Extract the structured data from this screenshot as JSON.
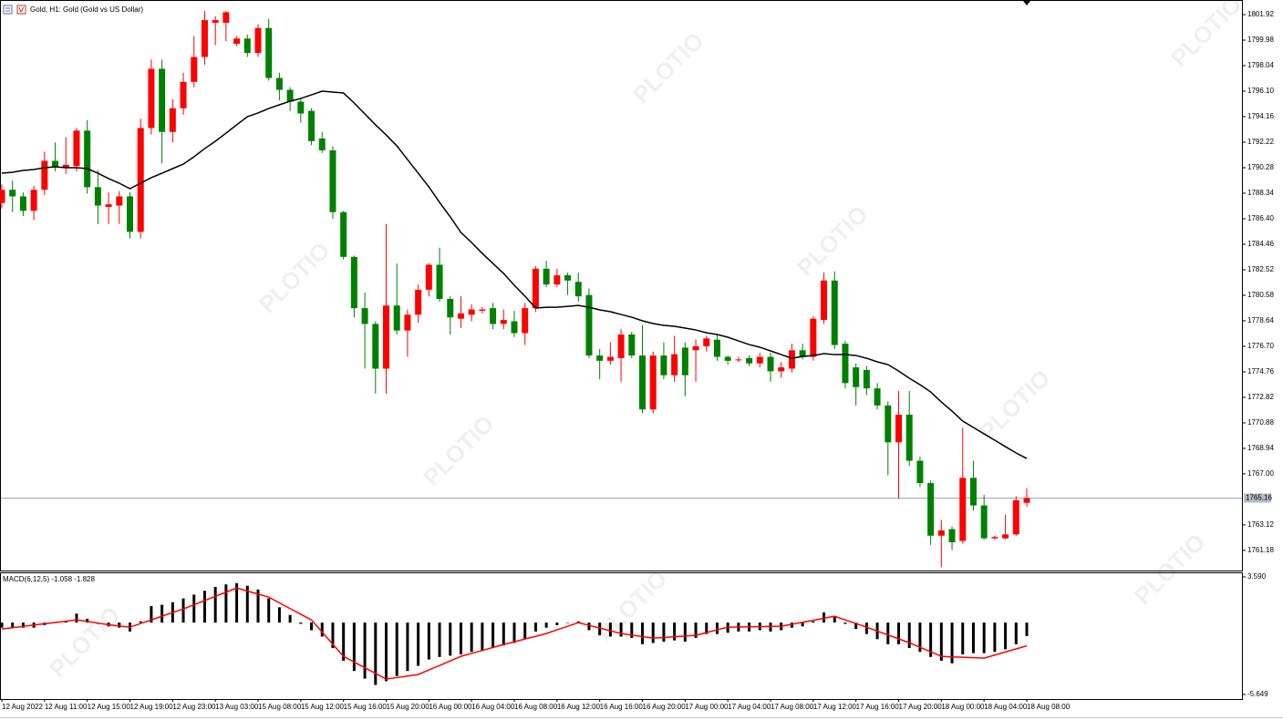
{
  "chart_data": [
    {
      "type": "candlestick",
      "title": "Gold, H1:  Gold (Gold vs US Dollar)",
      "watermark": "PLOTIO",
      "up_color": "#ff0000",
      "down_color": "#008000",
      "categories": [
        "12 Aug 2022",
        null,
        null,
        null,
        "12 Aug 11:00",
        null,
        null,
        null,
        "12 Aug 15:00",
        null,
        null,
        null,
        "12 Aug 19:00",
        null,
        null,
        null,
        "12 Aug 23:00",
        null,
        null,
        null,
        "13 Aug 03:00",
        null,
        null,
        null,
        "15 Aug 08:00",
        null,
        null,
        null,
        "15 Aug 12:00",
        null,
        null,
        null,
        "15 Aug 16:00",
        null,
        null,
        null,
        "15 Aug 20:00",
        null,
        null,
        null,
        "16 Aug 00:00",
        null,
        null,
        null,
        "16 Aug 04:00",
        null,
        null,
        null,
        "16 Aug 08:00",
        null,
        null,
        null,
        "16 Aug 12:00",
        null,
        null,
        null,
        "16 Aug 16:00",
        null,
        null,
        null,
        "16 Aug 20:00",
        null,
        null,
        null,
        "17 Aug 00:00",
        null,
        null,
        null,
        "17 Aug 04:00",
        null,
        null,
        null,
        "17 Aug 08:00",
        null,
        null,
        null,
        "17 Aug 12:00",
        null,
        null,
        null,
        "17 Aug 16:00",
        null,
        null,
        null,
        "17 Aug 20:00",
        null,
        null,
        null,
        "18 Aug 00:00",
        null,
        null,
        null,
        "18 Aug 04:00",
        null,
        null,
        null,
        "18 Aug 08:00"
      ],
      "open": [
        1787.6,
        1788.6,
        1788.1,
        1787.0,
        1788.6,
        1790.8,
        1790.3,
        1790.4,
        1793.1,
        1788.8,
        1787.3,
        1787.4,
        1788.1,
        1785.4,
        1793.3,
        1797.8,
        1793.0,
        1794.8,
        1796.8,
        1798.7,
        1801.3,
        1801.3,
        1799.7,
        1800.1,
        1799.0,
        1800.9,
        1797.1,
        1796.2,
        1795.3,
        1794.6,
        1792.5,
        1791.6,
        1786.9,
        1783.5,
        1779.6,
        1778.4,
        1775.0,
        1779.8,
        1777.9,
        1779.1,
        1781.0,
        1782.9,
        1780.3,
        1778.8,
        1779.1,
        1779.4,
        1779.6,
        1778.4,
        1778.6,
        1777.7,
        1779.6,
        1782.6,
        1781.4,
        1782.1,
        1781.6,
        1780.6,
        1776.0,
        1775.6,
        1775.8,
        1777.6,
        1776.0,
        1771.9,
        1776.0,
        1774.5,
        1776.6,
        1776.4,
        1776.7,
        1777.2,
        1775.9,
        1775.7,
        1775.8,
        1775.4,
        1775.9,
        1774.8,
        1775.0,
        1776.4,
        1775.9,
        1778.7,
        1781.7,
        1776.9,
        1775.1,
        1774.9,
        1773.5,
        1772.2,
        1769.4,
        1771.5,
        1768.0,
        1766.3,
        1762.3,
        1762.8,
        1761.9,
        1766.7,
        1764.6,
        1762.1,
        1762.1,
        1762.4,
        1764.8
      ],
      "high": [
        1789.0,
        1789.3,
        1788.4,
        1788.9,
        1791.5,
        1792.2,
        1792.6,
        1793.3,
        1793.9,
        1790.1,
        1788.4,
        1788.5,
        1788.4,
        1794.0,
        1798.5,
        1798.5,
        1795.5,
        1797.5,
        1800.3,
        1802.2,
        1801.8,
        1802.2,
        1800.3,
        1800.4,
        1801.2,
        1801.6,
        1797.5,
        1796.4,
        1795.6,
        1794.8,
        1793.0,
        1791.9,
        1787.0,
        1783.6,
        1780.8,
        1778.6,
        1786.0,
        1783.0,
        1779.5,
        1781.4,
        1783.0,
        1784.2,
        1780.5,
        1780.5,
        1779.9,
        1779.7,
        1780.0,
        1779.5,
        1779.4,
        1780.0,
        1782.8,
        1783.2,
        1782.6,
        1782.3,
        1782.3,
        1781.1,
        1776.5,
        1777.0,
        1778.0,
        1777.8,
        1778.3,
        1776.3,
        1777.0,
        1777.5,
        1777.0,
        1777.2,
        1777.5,
        1777.6,
        1776.0,
        1775.9,
        1776.0,
        1776.2,
        1776.2,
        1775.5,
        1776.9,
        1776.9,
        1779.0,
        1782.3,
        1782.4,
        1777.1,
        1775.4,
        1775.2,
        1773.9,
        1772.5,
        1773.3,
        1773.3,
        1768.3,
        1766.5,
        1763.5,
        1763.0,
        1770.5,
        1768.0,
        1765.4,
        1762.3,
        1763.9,
        1765.3,
        1765.9
      ],
      "low": [
        1787.2,
        1786.9,
        1786.6,
        1786.3,
        1788.2,
        1790.0,
        1789.8,
        1790.0,
        1788.3,
        1786.0,
        1786.0,
        1786.0,
        1784.9,
        1784.9,
        1792.8,
        1790.6,
        1792.2,
        1794.3,
        1796.4,
        1798.1,
        1799.6,
        1799.9,
        1799.5,
        1798.7,
        1798.7,
        1796.9,
        1795.4,
        1794.6,
        1793.7,
        1792.0,
        1791.4,
        1786.4,
        1783.3,
        1778.9,
        1775.0,
        1773.1,
        1773.1,
        1777.6,
        1775.9,
        1778.5,
        1780.5,
        1780.1,
        1777.6,
        1778.1,
        1778.6,
        1779.2,
        1778.0,
        1778.0,
        1777.4,
        1776.8,
        1779.3,
        1781.2,
        1781.2,
        1780.6,
        1780.1,
        1775.8,
        1774.2,
        1775.3,
        1774.0,
        1775.8,
        1771.6,
        1771.6,
        1774.2,
        1774.0,
        1772.9,
        1774.0,
        1776.3,
        1775.6,
        1775.3,
        1775.5,
        1775.2,
        1775.1,
        1774.0,
        1774.3,
        1774.7,
        1775.7,
        1775.6,
        1778.4,
        1776.5,
        1773.5,
        1772.2,
        1773.0,
        1771.9,
        1766.9,
        1765.1,
        1767.6,
        1766.0,
        1761.6,
        1759.9,
        1761.2,
        1761.7,
        1764.2,
        1762.0,
        1762.0,
        1762.0,
        1762.3,
        1764.5
      ],
      "close": [
        1788.6,
        1788.1,
        1787.0,
        1788.6,
        1790.8,
        1790.3,
        1790.5,
        1793.1,
        1788.8,
        1787.4,
        1787.5,
        1788.1,
        1785.4,
        1793.3,
        1797.8,
        1793.0,
        1794.8,
        1796.8,
        1798.7,
        1801.5,
        1801.5,
        1802.1,
        1800.1,
        1799.0,
        1800.9,
        1797.1,
        1796.2,
        1795.3,
        1794.4,
        1792.3,
        1791.6,
        1786.9,
        1783.5,
        1779.6,
        1778.4,
        1775.0,
        1779.8,
        1777.9,
        1779.1,
        1781.0,
        1782.9,
        1780.3,
        1778.9,
        1779.2,
        1779.5,
        1779.5,
        1778.4,
        1778.7,
        1777.7,
        1779.6,
        1782.6,
        1781.4,
        1782.1,
        1781.7,
        1780.5,
        1776.0,
        1775.6,
        1775.9,
        1777.6,
        1776.0,
        1771.9,
        1776.0,
        1774.5,
        1776.1,
        1774.5,
        1776.7,
        1777.3,
        1775.9,
        1775.6,
        1775.7,
        1775.4,
        1775.9,
        1774.8,
        1775.1,
        1776.4,
        1775.9,
        1778.8,
        1781.7,
        1776.8,
        1773.9,
        1773.6,
        1773.5,
        1772.2,
        1769.4,
        1771.5,
        1768.0,
        1766.3,
        1762.3,
        1762.7,
        1761.8,
        1766.7,
        1764.6,
        1762.1,
        1762.2,
        1762.4,
        1765.0,
        1765.16
      ],
      "series": [
        {
          "color": "#000000",
          "values": [
            1789.86,
            1789.93,
            1790.07,
            1790.14,
            1790.28,
            1790.35,
            1790.28,
            1790.28,
            1790.21,
            1789.86,
            1789.45,
            1789.1,
            1788.68,
            1789.1,
            1789.52,
            1789.86,
            1790.21,
            1790.55,
            1791.11,
            1791.73,
            1792.29,
            1792.91,
            1793.54,
            1794.16,
            1794.44,
            1794.78,
            1795.06,
            1795.34,
            1795.54,
            1795.82,
            1796.1,
            1796.03,
            1795.96,
            1795.2,
            1794.37,
            1793.54,
            1792.77,
            1791.94,
            1790.9,
            1789.86,
            1788.82,
            1787.64,
            1786.54,
            1785.36,
            1784.59,
            1783.76,
            1783.0,
            1782.24,
            1781.34,
            1780.51,
            1779.61,
            1779.67,
            1779.67,
            1779.74,
            1779.81,
            1779.67,
            1779.47,
            1779.33,
            1779.12,
            1778.91,
            1778.64,
            1778.43,
            1778.29,
            1778.22,
            1778.08,
            1777.94,
            1777.73,
            1777.6,
            1777.39,
            1777.11,
            1776.83,
            1776.63,
            1776.35,
            1776.07,
            1775.79,
            1775.93,
            1776.0,
            1776.14,
            1776.07,
            1776.07,
            1776.0,
            1775.79,
            1775.52,
            1775.31,
            1774.82,
            1774.27,
            1773.78,
            1773.23,
            1772.47,
            1771.77,
            1771.01,
            1770.53,
            1770.04,
            1769.56,
            1769.07,
            1768.59,
            1768.17
          ]
        }
      ],
      "last_price": 1765.16,
      "ylim": [
        1759.72,
        1803.03
      ],
      "yticks": [
        1801.92,
        1799.98,
        1798.04,
        {
          "value": 1796.1,
          "label": "1796.10"
        },
        1794.16,
        1792.22,
        1790.28,
        1788.34,
        {
          "value": 1786.4,
          "label": "1786.40"
        },
        1784.46,
        1782.52,
        1780.58,
        1778.64,
        {
          "value": 1776.7,
          "label": "1776.70"
        },
        1774.76,
        1772.82,
        1770.88,
        1768.94,
        {
          "value": 1767,
          "label": "1767.00"
        },
        1763.12,
        1761.18
      ],
      "grid": false
    },
    {
      "type": "macd",
      "title": "MACD(6,12,5) -1.058 -1.828",
      "series": [
        {
          "type": "bar",
          "color": "#000000",
          "values": [
            -0.4,
            -0.4,
            -0.4,
            -0.4,
            -0.2,
            0.0,
            0.1,
            0.7,
            0.3,
            -0.1,
            -0.3,
            -0.4,
            -0.7,
            0.1,
            1.3,
            1.4,
            1.6,
            1.9,
            2.2,
            2.5,
            2.8,
            3.0,
            3.1,
            2.9,
            2.6,
            1.9,
            1.2,
            0.6,
            -0.1,
            -0.6,
            -1.1,
            -2.0,
            -3.0,
            -3.8,
            -4.4,
            -4.9,
            -4.6,
            -4.2,
            -3.8,
            -3.4,
            -2.9,
            -2.7,
            -2.6,
            -2.5,
            -2.3,
            -2.2,
            -2.0,
            -1.8,
            -1.6,
            -1.3,
            -0.7,
            -0.4,
            -0.2,
            0.0,
            0.1,
            -0.6,
            -1.0,
            -1.1,
            -1.1,
            -1.2,
            -1.7,
            -1.6,
            -1.5,
            -1.4,
            -1.5,
            -1.2,
            -0.9,
            -0.9,
            -0.8,
            -0.7,
            -0.7,
            -0.6,
            -0.7,
            -0.6,
            -0.4,
            -0.3,
            0.1,
            0.8,
            0.5,
            -0.1,
            -0.5,
            -0.9,
            -1.3,
            -1.7,
            -1.7,
            -2.0,
            -2.3,
            -2.7,
            -3.0,
            -3.2,
            -2.5,
            -2.4,
            -2.4,
            -2.3,
            -2.1,
            -1.7,
            -1.058
          ]
        },
        {
          "type": "line",
          "color": "#ff0000",
          "values": [
            -0.5,
            -0.4,
            -0.3,
            -0.19,
            -0.09,
            0.01,
            0.11,
            0.21,
            0.1,
            -0.04,
            -0.17,
            -0.27,
            -0.36,
            -0.07,
            0.21,
            0.5,
            0.79,
            1.07,
            1.4,
            1.73,
            2.06,
            2.39,
            2.72,
            2.48,
            2.24,
            2.0,
            1.55,
            1.1,
            0.66,
            0.21,
            -0.74,
            -1.7,
            -2.65,
            -3.1,
            -3.55,
            -3.99,
            -4.44,
            -4.32,
            -4.2,
            -4.08,
            -3.72,
            -3.37,
            -3.01,
            -2.65,
            -2.42,
            -2.19,
            -1.95,
            -1.72,
            -1.51,
            -1.29,
            -1.08,
            -0.86,
            -0.57,
            -0.29,
            0.0,
            -0.22,
            -0.43,
            -0.65,
            -0.86,
            -0.98,
            -1.1,
            -1.22,
            -1.17,
            -1.11,
            -1.06,
            -1.0,
            -0.79,
            -0.57,
            -0.36,
            -0.35,
            -0.33,
            -0.32,
            -0.3,
            -0.29,
            -0.13,
            0.03,
            0.18,
            0.34,
            0.5,
            0.21,
            -0.07,
            -0.36,
            -0.67,
            -0.97,
            -1.28,
            -1.58,
            -1.94,
            -2.29,
            -2.65,
            -2.69,
            -2.72,
            -2.76,
            -2.79,
            -2.55,
            -2.31,
            -2.07,
            -1.828
          ]
        }
      ],
      "ylim": [
        -6.007,
        3.948
      ],
      "yticks": [
        {
          "value": 3.59,
          "label": "3.590"
        },
        -5.649
      ]
    }
  ]
}
